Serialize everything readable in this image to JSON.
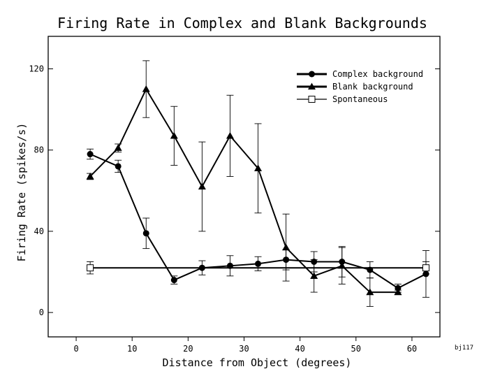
{
  "chart_data": {
    "type": "line",
    "title": "Firing Rate in Complex and Blank Backgrounds",
    "xlabel": "Distance from Object (degrees)",
    "ylabel": "Firing Rate (spikes/s)",
    "xlim": [
      -5,
      65
    ],
    "ylim": [
      -12,
      136
    ],
    "x_ticks": [
      0,
      10,
      20,
      30,
      40,
      50,
      60
    ],
    "y_ticks": [
      0,
      40,
      80,
      120
    ],
    "grid": false,
    "legend_position": "top-right",
    "corner_label": "bj117",
    "series": [
      {
        "name": "Complex background",
        "marker": "filled-circle",
        "line_width": 2,
        "x": [
          2.5,
          7.5,
          12.5,
          17.5,
          22.5,
          27.5,
          32.5,
          37.5,
          42.5,
          47.5,
          52.5,
          57.5,
          62.5
        ],
        "y": [
          78,
          72,
          39,
          16,
          22,
          23,
          24,
          26,
          25,
          25,
          21,
          12,
          19
        ],
        "err": [
          2.5,
          3,
          7.5,
          2,
          3.5,
          5,
          3.5,
          5,
          5,
          7.5,
          4,
          2,
          11.5
        ]
      },
      {
        "name": "Blank background",
        "marker": "filled-triangle",
        "line_width": 2,
        "x": [
          2.5,
          7.5,
          12.5,
          17.5,
          22.5,
          27.5,
          32.5,
          37.5,
          42.5,
          47.5,
          52.5,
          57.5
        ],
        "y": [
          67,
          81,
          110,
          87,
          62,
          87,
          71,
          32,
          18,
          23,
          10,
          10
        ],
        "err": [
          1.5,
          2,
          14,
          14.5,
          22,
          20,
          22,
          16.5,
          8,
          9,
          7,
          1
        ]
      },
      {
        "name": "Spontaneous",
        "marker": "open-square",
        "line_width": 2,
        "x": [
          2.5,
          62.5
        ],
        "y": [
          22,
          22
        ],
        "err": [
          3,
          3
        ]
      }
    ]
  }
}
